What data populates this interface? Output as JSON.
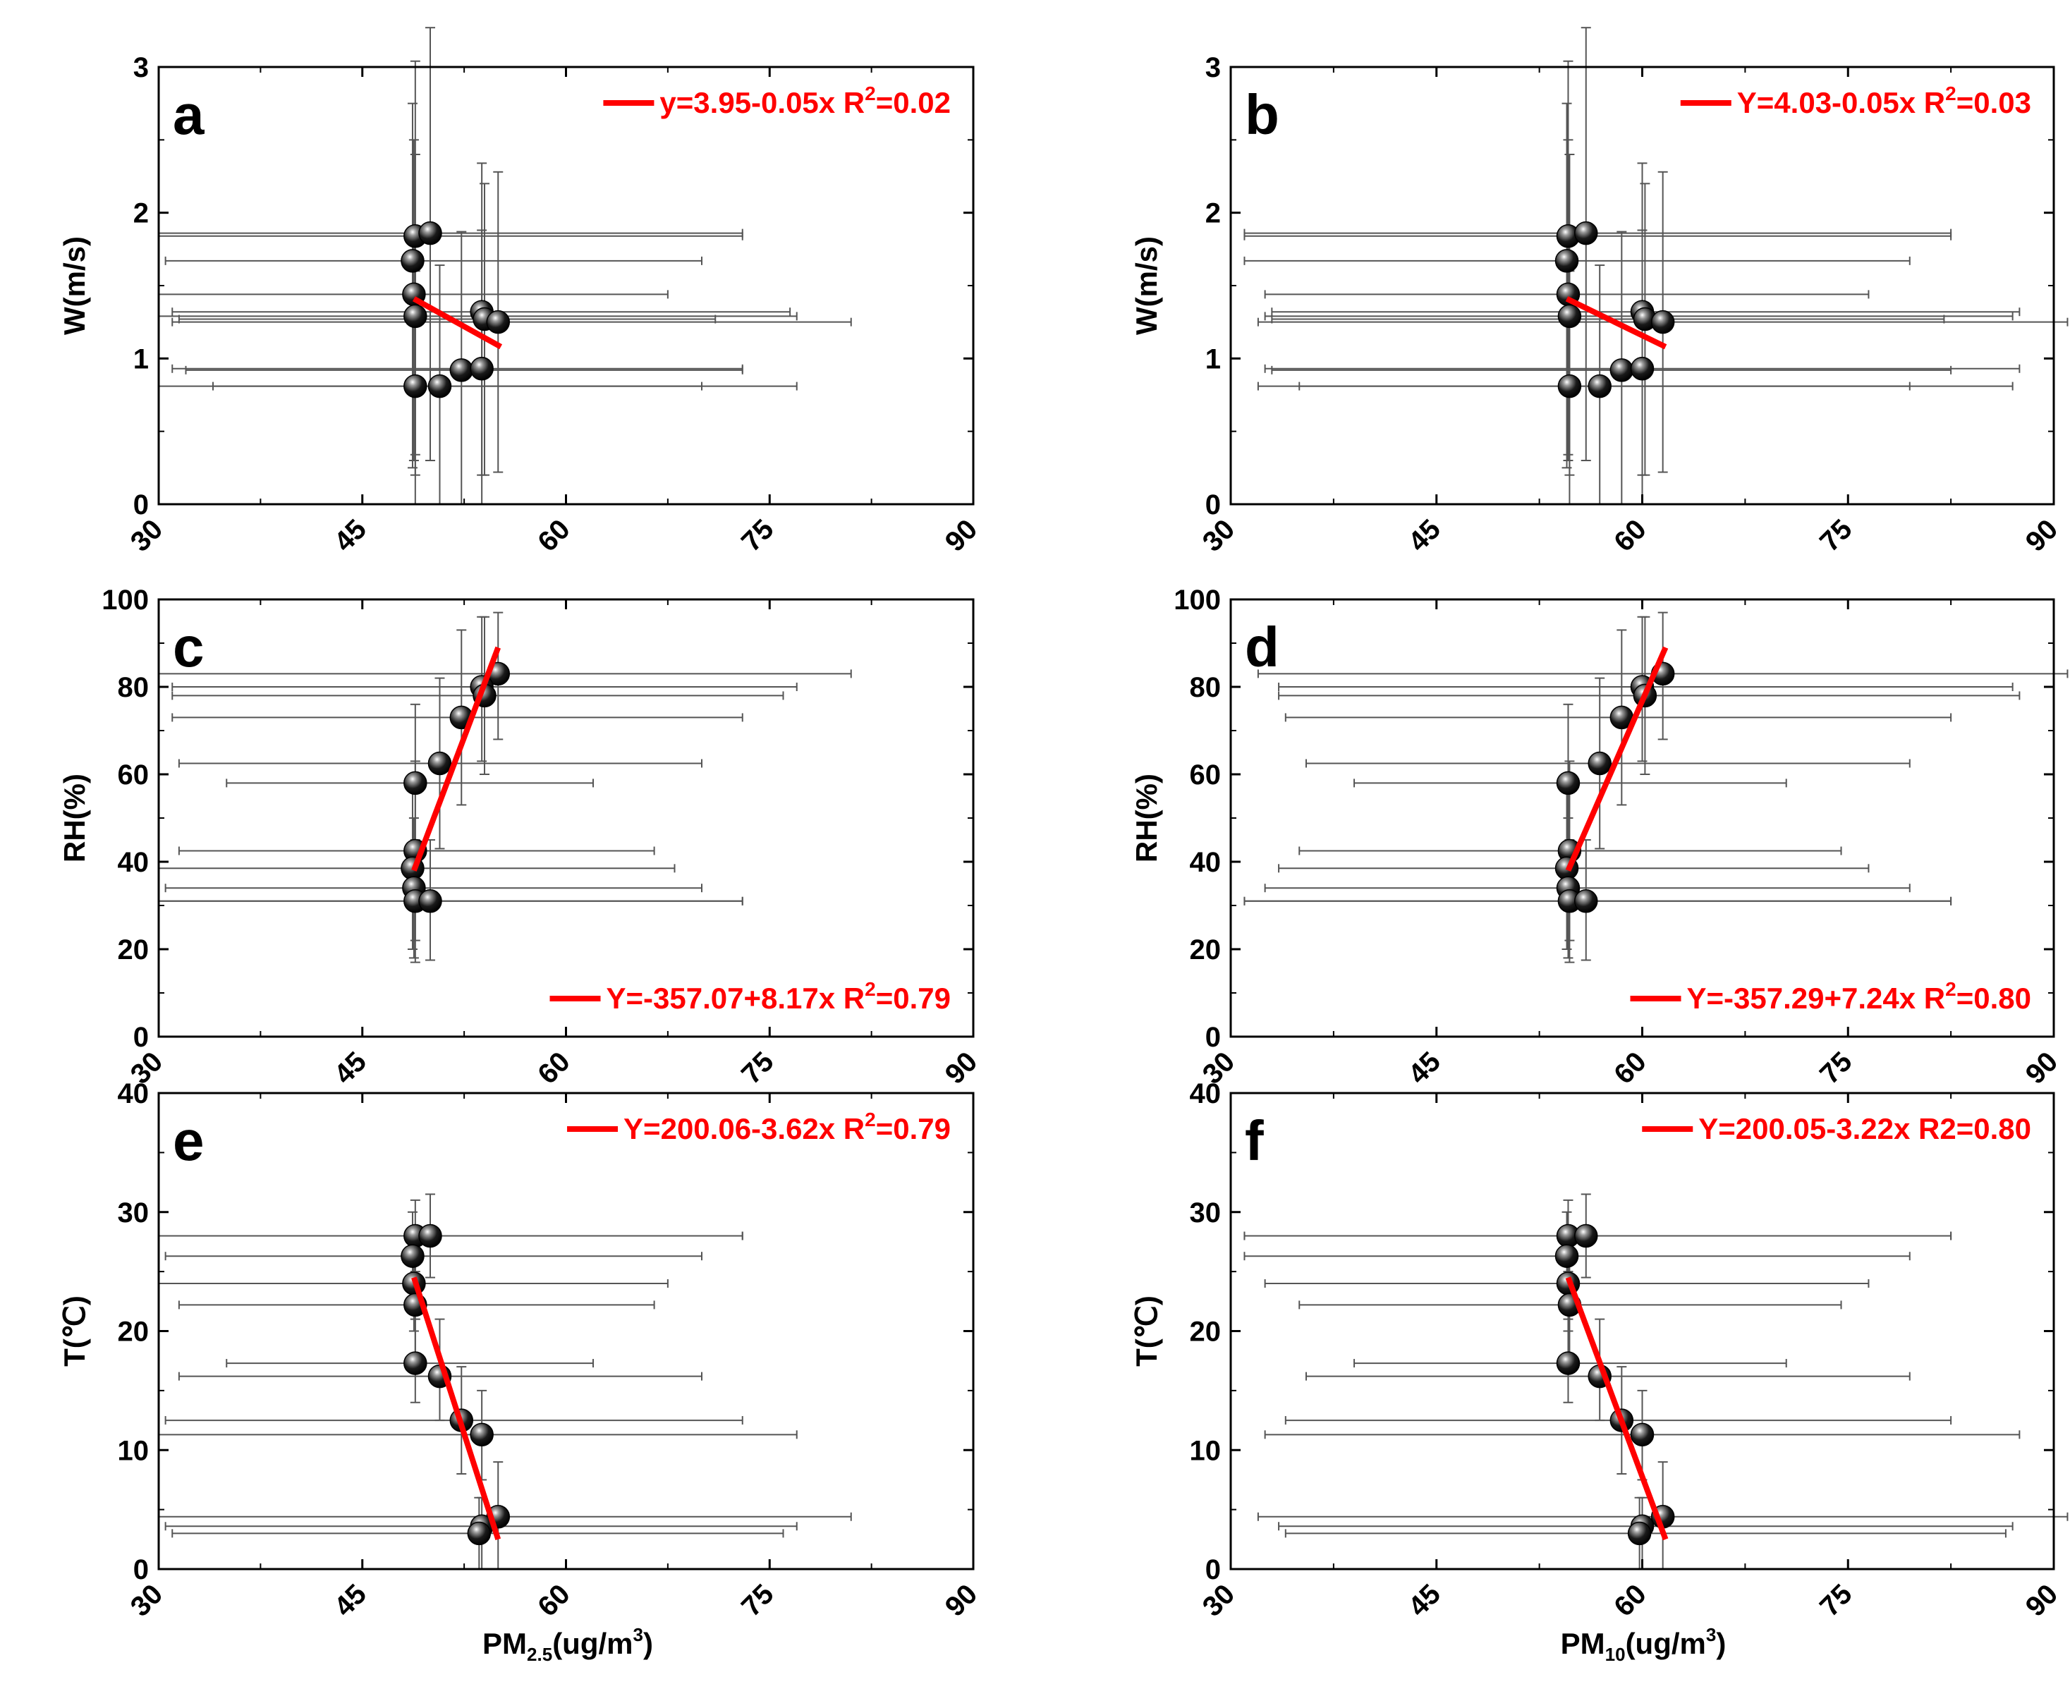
{
  "figure": {
    "colors": {
      "fit_line": "#ff0000",
      "axis": "#000000",
      "errorbar": "#555555",
      "marker": "#000000"
    },
    "marker_icon": "black-sphere-marker",
    "shared_xlabels": {
      "pm25": {
        "base": "PM",
        "sub": "2.5",
        "tail": "(ug/m",
        "sup": "3",
        "close": ")"
      },
      "pm10": {
        "base": "PM",
        "sub": "10",
        "tail": "(ug/m",
        "sup": "3",
        "close": ")"
      }
    }
  },
  "chart_data": [
    {
      "panel": "a",
      "type": "scatter",
      "xlim": [
        30,
        90
      ],
      "xticks": [
        "30",
        "45",
        "60",
        "75",
        "90"
      ],
      "ylim": [
        0,
        3
      ],
      "yticks": [
        "0",
        "1",
        "2",
        "3"
      ],
      "ylabel": "W(m/s)",
      "equation": {
        "main": "y=3.95-0.05x  R",
        "sup": "2",
        "tail": "=0.02",
        "legend_position": "top-right"
      },
      "fit": {
        "x": [
          48.8,
          55.2
        ],
        "y": [
          1.41,
          1.08
        ]
      },
      "points": [
        {
          "x": 48.9,
          "y": 1.84,
          "xerr": [
            30.0,
            73.0
          ],
          "yerr": [
            0.34,
            3.04
          ]
        },
        {
          "x": 50.0,
          "y": 1.86,
          "xerr": [
            30.0,
            73.0
          ],
          "yerr": [
            0.3,
            3.27
          ]
        },
        {
          "x": 48.7,
          "y": 1.67,
          "xerr": [
            30.5,
            70.0
          ],
          "yerr": [
            0.25,
            2.75
          ]
        },
        {
          "x": 48.8,
          "y": 1.44,
          "xerr": [
            30.0,
            67.5
          ],
          "yerr": [
            0.3,
            2.5
          ]
        },
        {
          "x": 48.9,
          "y": 1.29,
          "xerr": [
            30.0,
            77.0
          ],
          "yerr": [
            0.2,
            2.4
          ]
        },
        {
          "x": 53.8,
          "y": 1.32,
          "xerr": [
            31.0,
            76.5
          ],
          "yerr": [
            0.2,
            2.34
          ]
        },
        {
          "x": 54.0,
          "y": 1.27,
          "xerr": [
            31.5,
            71.0
          ],
          "yerr": [
            0.2,
            2.2
          ]
        },
        {
          "x": 55.0,
          "y": 1.25,
          "xerr": [
            31.0,
            81.0
          ],
          "yerr": [
            0.22,
            2.28
          ]
        },
        {
          "x": 48.9,
          "y": 0.81,
          "xerr": [
            30.0,
            77.0
          ],
          "yerr": [
            0.0,
            1.6
          ]
        },
        {
          "x": 50.7,
          "y": 0.81,
          "xerr": [
            34.0,
            70.0
          ],
          "yerr": [
            0.0,
            1.64
          ]
        },
        {
          "x": 52.3,
          "y": 0.92,
          "xerr": [
            32.0,
            73.0
          ],
          "yerr": [
            0.0,
            1.87
          ]
        },
        {
          "x": 53.8,
          "y": 0.93,
          "xerr": [
            31.0,
            73.0
          ],
          "yerr": [
            0.0,
            1.88
          ]
        }
      ]
    },
    {
      "panel": "b",
      "type": "scatter",
      "xlim": [
        30,
        90
      ],
      "xticks": [
        "30",
        "45",
        "60",
        "75",
        "90"
      ],
      "ylim": [
        0,
        3
      ],
      "yticks": [
        "0",
        "1",
        "2",
        "3"
      ],
      "ylabel": "W(m/s)",
      "equation": {
        "main": "Y=4.03-0.05x  R",
        "sup": "2",
        "tail": "=0.03",
        "legend_position": "top-right"
      },
      "fit": {
        "x": [
          54.5,
          61.7
        ],
        "y": [
          1.41,
          1.08
        ]
      },
      "points": [
        {
          "x": 54.6,
          "y": 1.84,
          "xerr": [
            31.0,
            82.5
          ],
          "yerr": [
            0.34,
            3.04
          ]
        },
        {
          "x": 55.9,
          "y": 1.86,
          "xerr": [
            31.0,
            82.5
          ],
          "yerr": [
            0.3,
            3.27
          ]
        },
        {
          "x": 54.5,
          "y": 1.67,
          "xerr": [
            31.0,
            79.5
          ],
          "yerr": [
            0.25,
            2.75
          ]
        },
        {
          "x": 54.6,
          "y": 1.44,
          "xerr": [
            32.5,
            76.5
          ],
          "yerr": [
            0.3,
            2.5
          ]
        },
        {
          "x": 54.7,
          "y": 1.29,
          "xerr": [
            32.5,
            87.0
          ],
          "yerr": [
            0.2,
            2.4
          ]
        },
        {
          "x": 60.0,
          "y": 1.32,
          "xerr": [
            33.0,
            87.5
          ],
          "yerr": [
            0.2,
            2.34
          ]
        },
        {
          "x": 60.2,
          "y": 1.27,
          "xerr": [
            33.0,
            82.0
          ],
          "yerr": [
            0.2,
            2.2
          ]
        },
        {
          "x": 61.5,
          "y": 1.25,
          "xerr": [
            32.0,
            91.0
          ],
          "yerr": [
            0.22,
            2.28
          ]
        },
        {
          "x": 54.7,
          "y": 0.81,
          "xerr": [
            32.0,
            87.0
          ],
          "yerr": [
            0.0,
            1.6
          ]
        },
        {
          "x": 56.9,
          "y": 0.81,
          "xerr": [
            35.0,
            79.5
          ],
          "yerr": [
            0.0,
            1.64
          ]
        },
        {
          "x": 58.5,
          "y": 0.92,
          "xerr": [
            33.0,
            82.5
          ],
          "yerr": [
            0.0,
            1.87
          ]
        },
        {
          "x": 60.0,
          "y": 0.93,
          "xerr": [
            32.5,
            87.5
          ],
          "yerr": [
            0.0,
            1.88
          ]
        }
      ]
    },
    {
      "panel": "c",
      "type": "scatter",
      "xlim": [
        30,
        90
      ],
      "xticks": [
        "30",
        "45",
        "60",
        "75",
        "90"
      ],
      "ylim": [
        0,
        100
      ],
      "yticks": [
        "0",
        "20",
        "40",
        "60",
        "80",
        "100"
      ],
      "ylabel": "RH(%)",
      "equation": {
        "main": "Y=-357.07+8.17x  R",
        "sup": "2",
        "tail": "=0.79",
        "legend_position": "bottom-right"
      },
      "fit": {
        "x": [
          48.8,
          55.0
        ],
        "y": [
          38.0,
          89.0
        ]
      },
      "points": [
        {
          "x": 55.0,
          "y": 83.0,
          "xerr": [
            30.0,
            81.0
          ],
          "yerr": [
            68.0,
            97.0
          ]
        },
        {
          "x": 53.8,
          "y": 80.0,
          "xerr": [
            31.0,
            77.0
          ],
          "yerr": [
            63.0,
            96.0
          ]
        },
        {
          "x": 54.0,
          "y": 78.0,
          "xerr": [
            31.0,
            76.0
          ],
          "yerr": [
            60.0,
            96.0
          ]
        },
        {
          "x": 52.3,
          "y": 73.0,
          "xerr": [
            31.0,
            73.0
          ],
          "yerr": [
            53.0,
            93.0
          ]
        },
        {
          "x": 50.7,
          "y": 62.5,
          "xerr": [
            31.5,
            70.0
          ],
          "yerr": [
            43.0,
            82.0
          ]
        },
        {
          "x": 48.9,
          "y": 58.0,
          "xerr": [
            35.0,
            62.0
          ],
          "yerr": [
            41.0,
            76.0
          ]
        },
        {
          "x": 48.9,
          "y": 42.5,
          "xerr": [
            31.5,
            66.5
          ],
          "yerr": [
            22.0,
            63.0
          ]
        },
        {
          "x": 48.7,
          "y": 38.5,
          "xerr": [
            30.0,
            68.0
          ],
          "yerr": [
            20.0,
            57.0
          ]
        },
        {
          "x": 48.8,
          "y": 34.0,
          "xerr": [
            30.5,
            70.0
          ],
          "yerr": [
            18.0,
            50.0
          ]
        },
        {
          "x": 48.9,
          "y": 31.0,
          "xerr": [
            29.5,
            73.0
          ],
          "yerr": [
            17.0,
            45.0
          ]
        },
        {
          "x": 50.0,
          "y": 31.0,
          "xerr": [
            29.5,
            73.0
          ],
          "yerr": [
            17.5,
            45.0
          ]
        }
      ]
    },
    {
      "panel": "d",
      "type": "scatter",
      "xlim": [
        30,
        90
      ],
      "xticks": [
        "30",
        "45",
        "60",
        "75",
        "90"
      ],
      "ylim": [
        0,
        100
      ],
      "yticks": [
        "0",
        "20",
        "40",
        "60",
        "80",
        "100"
      ],
      "ylabel": "RH(%)",
      "equation": {
        "main": "Y=-357.29+7.24x  R",
        "sup": "2",
        "tail": "=0.80",
        "legend_position": "bottom-right"
      },
      "fit": {
        "x": [
          54.6,
          61.7
        ],
        "y": [
          38.0,
          89.0
        ]
      },
      "points": [
        {
          "x": 61.5,
          "y": 83.0,
          "xerr": [
            32.0,
            91.0
          ],
          "yerr": [
            68.0,
            97.0
          ]
        },
        {
          "x": 60.0,
          "y": 80.0,
          "xerr": [
            33.5,
            87.0
          ],
          "yerr": [
            63.0,
            96.0
          ]
        },
        {
          "x": 60.2,
          "y": 78.0,
          "xerr": [
            33.5,
            87.5
          ],
          "yerr": [
            60.0,
            96.0
          ]
        },
        {
          "x": 58.5,
          "y": 73.0,
          "xerr": [
            34.0,
            82.5
          ],
          "yerr": [
            53.0,
            93.0
          ]
        },
        {
          "x": 56.9,
          "y": 62.5,
          "xerr": [
            35.5,
            79.5
          ],
          "yerr": [
            43.0,
            82.0
          ]
        },
        {
          "x": 54.6,
          "y": 58.0,
          "xerr": [
            39.0,
            70.5
          ],
          "yerr": [
            41.0,
            76.0
          ]
        },
        {
          "x": 54.7,
          "y": 42.5,
          "xerr": [
            35.0,
            74.5
          ],
          "yerr": [
            22.0,
            63.0
          ]
        },
        {
          "x": 54.5,
          "y": 38.5,
          "xerr": [
            33.5,
            76.5
          ],
          "yerr": [
            20.0,
            57.0
          ]
        },
        {
          "x": 54.6,
          "y": 34.0,
          "xerr": [
            32.5,
            79.5
          ],
          "yerr": [
            18.0,
            50.0
          ]
        },
        {
          "x": 54.7,
          "y": 31.0,
          "xerr": [
            31.0,
            82.5
          ],
          "yerr": [
            17.0,
            45.0
          ]
        },
        {
          "x": 55.9,
          "y": 31.0,
          "xerr": [
            31.0,
            82.5
          ],
          "yerr": [
            17.5,
            45.0
          ]
        }
      ]
    },
    {
      "panel": "e",
      "type": "scatter",
      "xlim": [
        30,
        90
      ],
      "xticks": [
        "30",
        "45",
        "60",
        "75",
        "90"
      ],
      "ylim": [
        0,
        40
      ],
      "yticks": [
        "0",
        "10",
        "20",
        "30",
        "40"
      ],
      "ylabel": "T(℃)",
      "equation": {
        "main": "Y=200.06-3.62x  R",
        "sup": "2",
        "tail": "=0.79",
        "legend_position": "top-right"
      },
      "fit": {
        "x": [
          48.8,
          55.0
        ],
        "y": [
          24.5,
          2.5
        ]
      },
      "points": [
        {
          "x": 48.9,
          "y": 28.0,
          "xerr": [
            29.5,
            73.0
          ],
          "yerr": [
            25.0,
            31.0
          ]
        },
        {
          "x": 50.0,
          "y": 28.0,
          "xerr": [
            29.5,
            73.0
          ],
          "yerr": [
            24.5,
            31.5
          ]
        },
        {
          "x": 48.7,
          "y": 26.3,
          "xerr": [
            30.5,
            70.0
          ],
          "yerr": [
            22.5,
            30.0
          ]
        },
        {
          "x": 48.8,
          "y": 24.0,
          "xerr": [
            30.0,
            67.5
          ],
          "yerr": [
            20.0,
            28.0
          ]
        },
        {
          "x": 48.9,
          "y": 22.2,
          "xerr": [
            31.5,
            66.5
          ],
          "yerr": [
            18.0,
            26.5
          ]
        },
        {
          "x": 48.9,
          "y": 17.3,
          "xerr": [
            35.0,
            62.0
          ],
          "yerr": [
            14.0,
            21.0
          ]
        },
        {
          "x": 50.7,
          "y": 16.2,
          "xerr": [
            31.5,
            70.0
          ],
          "yerr": [
            12.5,
            21.0
          ]
        },
        {
          "x": 52.3,
          "y": 12.5,
          "xerr": [
            30.5,
            73.0
          ],
          "yerr": [
            8.0,
            17.0
          ]
        },
        {
          "x": 53.8,
          "y": 11.3,
          "xerr": [
            30.0,
            77.0
          ],
          "yerr": [
            7.5,
            15.0
          ]
        },
        {
          "x": 55.0,
          "y": 4.4,
          "xerr": [
            30.0,
            81.0
          ],
          "yerr": [
            0.0,
            9.0
          ]
        },
        {
          "x": 53.8,
          "y": 3.6,
          "xerr": [
            30.5,
            77.0
          ],
          "yerr": [
            0.0,
            6.0
          ]
        },
        {
          "x": 53.6,
          "y": 3.0,
          "xerr": [
            31.0,
            76.0
          ],
          "yerr": [
            0.0,
            6.0
          ]
        }
      ]
    },
    {
      "panel": "f",
      "type": "scatter",
      "xlim": [
        30,
        90
      ],
      "xticks": [
        "30",
        "45",
        "60",
        "75",
        "90"
      ],
      "ylim": [
        0,
        40
      ],
      "yticks": [
        "0",
        "10",
        "20",
        "30",
        "40"
      ],
      "ylabel": "T(℃)",
      "equation": {
        "main": "Y=200.05-3.22x  R2=0.80",
        "sup": "",
        "tail": "",
        "legend_position": "top-right"
      },
      "fit": {
        "x": [
          54.6,
          61.7
        ],
        "y": [
          24.5,
          2.5
        ]
      },
      "points": [
        {
          "x": 54.6,
          "y": 28.0,
          "xerr": [
            31.0,
            82.5
          ],
          "yerr": [
            25.0,
            31.0
          ]
        },
        {
          "x": 55.9,
          "y": 28.0,
          "xerr": [
            31.0,
            82.5
          ],
          "yerr": [
            24.5,
            31.5
          ]
        },
        {
          "x": 54.5,
          "y": 26.3,
          "xerr": [
            31.0,
            79.5
          ],
          "yerr": [
            22.5,
            30.0
          ]
        },
        {
          "x": 54.6,
          "y": 24.0,
          "xerr": [
            32.5,
            76.5
          ],
          "yerr": [
            20.0,
            28.0
          ]
        },
        {
          "x": 54.7,
          "y": 22.2,
          "xerr": [
            35.0,
            74.5
          ],
          "yerr": [
            18.0,
            26.5
          ]
        },
        {
          "x": 54.6,
          "y": 17.3,
          "xerr": [
            39.0,
            70.5
          ],
          "yerr": [
            14.0,
            21.0
          ]
        },
        {
          "x": 56.9,
          "y": 16.2,
          "xerr": [
            35.5,
            79.5
          ],
          "yerr": [
            12.5,
            21.0
          ]
        },
        {
          "x": 58.5,
          "y": 12.5,
          "xerr": [
            34.0,
            82.5
          ],
          "yerr": [
            8.0,
            17.0
          ]
        },
        {
          "x": 60.0,
          "y": 11.3,
          "xerr": [
            32.5,
            87.5
          ],
          "yerr": [
            7.5,
            15.0
          ]
        },
        {
          "x": 61.5,
          "y": 4.4,
          "xerr": [
            32.0,
            91.0
          ],
          "yerr": [
            0.0,
            9.0
          ]
        },
        {
          "x": 60.0,
          "y": 3.6,
          "xerr": [
            33.5,
            87.0
          ],
          "yerr": [
            0.0,
            6.0
          ]
        },
        {
          "x": 59.8,
          "y": 3.0,
          "xerr": [
            34.0,
            86.5
          ],
          "yerr": [
            0.0,
            6.0
          ]
        }
      ]
    }
  ]
}
